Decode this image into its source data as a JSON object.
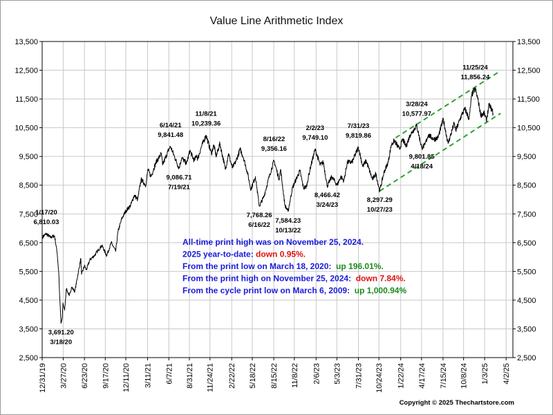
{
  "chart_data": {
    "type": "line",
    "title": "Value Line Arithmetic Index",
    "xlabel": "",
    "ylabel": "",
    "ylim": [
      2500,
      13500
    ],
    "xlim": [
      "2019-12-31",
      "2025-04-30"
    ],
    "grid": true,
    "y_ticks": [
      "13,500",
      "12,500",
      "11,500",
      "10,500",
      "9,500",
      "8,500",
      "7,500",
      "6,500",
      "5,500",
      "4,500",
      "3,500",
      "2,500"
    ],
    "y_tick_values": [
      13500,
      12500,
      11500,
      10500,
      9500,
      8500,
      7500,
      6500,
      5500,
      4500,
      3500,
      2500
    ],
    "x_ticks": [
      {
        "label": "12/31/19",
        "date": "2019-12-31"
      },
      {
        "label": "3/27/20",
        "date": "2020-03-27"
      },
      {
        "label": "6/23/20",
        "date": "2020-06-23"
      },
      {
        "label": "9/17/20",
        "date": "2020-09-17"
      },
      {
        "label": "12/11/20",
        "date": "2020-12-11"
      },
      {
        "label": "3/11/21",
        "date": "2021-03-11"
      },
      {
        "label": "6/7/21",
        "date": "2021-06-07"
      },
      {
        "label": "8/31/21",
        "date": "2021-08-31"
      },
      {
        "label": "11/24/21",
        "date": "2021-11-24"
      },
      {
        "label": "2/22/22",
        "date": "2022-02-22"
      },
      {
        "label": "5/18/22",
        "date": "2022-05-18"
      },
      {
        "label": "8/15/22",
        "date": "2022-08-15"
      },
      {
        "label": "11/8/22",
        "date": "2022-11-08"
      },
      {
        "label": "2/6/23",
        "date": "2023-02-06"
      },
      {
        "label": "5/3/23",
        "date": "2023-05-03"
      },
      {
        "label": "7/31/23",
        "date": "2023-07-31"
      },
      {
        "label": "10/24/23",
        "date": "2023-10-24"
      },
      {
        "label": "1/22/24",
        "date": "2024-01-22"
      },
      {
        "label": "4/17/24",
        "date": "2024-04-17"
      },
      {
        "label": "7/15/24",
        "date": "2024-07-15"
      },
      {
        "label": "10/8/24",
        "date": "2024-10-08"
      },
      {
        "label": "1/3/25",
        "date": "2025-01-03"
      },
      {
        "label": "4/2/25",
        "date": "2025-04-02"
      }
    ],
    "series": [
      {
        "color": "#000000",
        "points": [
          [
            "2020-01-02",
            6700
          ],
          [
            "2020-01-17",
            6810.03
          ],
          [
            "2020-02-03",
            6680
          ],
          [
            "2020-02-20",
            6740
          ],
          [
            "2020-03-02",
            6150
          ],
          [
            "2020-03-09",
            5400
          ],
          [
            "2020-03-12",
            4700
          ],
          [
            "2020-03-18",
            3691.2
          ],
          [
            "2020-03-23",
            3850
          ],
          [
            "2020-03-26",
            4400
          ],
          [
            "2020-04-02",
            4150
          ],
          [
            "2020-04-09",
            4900
          ],
          [
            "2020-04-21",
            4650
          ],
          [
            "2020-05-01",
            4950
          ],
          [
            "2020-05-14",
            4800
          ],
          [
            "2020-06-08",
            5950
          ],
          [
            "2020-06-11",
            5400
          ],
          [
            "2020-06-23",
            5700
          ],
          [
            "2020-07-01",
            5550
          ],
          [
            "2020-07-15",
            5900
          ],
          [
            "2020-08-03",
            6050
          ],
          [
            "2020-08-20",
            6250
          ],
          [
            "2020-09-03",
            6400
          ],
          [
            "2020-09-23",
            6050
          ],
          [
            "2020-10-12",
            6500
          ],
          [
            "2020-10-30",
            6200
          ],
          [
            "2020-11-09",
            6900
          ],
          [
            "2020-11-25",
            7350
          ],
          [
            "2020-12-11",
            7600
          ],
          [
            "2020-12-31",
            7800
          ],
          [
            "2021-01-15",
            8150
          ],
          [
            "2021-01-29",
            8000
          ],
          [
            "2021-02-12",
            8700
          ],
          [
            "2021-03-04",
            8500
          ],
          [
            "2021-03-12",
            9050
          ],
          [
            "2021-03-25",
            8800
          ],
          [
            "2021-04-15",
            9300
          ],
          [
            "2021-05-07",
            9600
          ],
          [
            "2021-05-12",
            9200
          ],
          [
            "2021-06-07",
            9750
          ],
          [
            "2021-06-14",
            9841.48
          ],
          [
            "2021-06-30",
            9500
          ],
          [
            "2021-07-19",
            9086.71
          ],
          [
            "2021-07-30",
            9450
          ],
          [
            "2021-08-19",
            9250
          ],
          [
            "2021-09-02",
            9700
          ],
          [
            "2021-09-20",
            9350
          ],
          [
            "2021-09-30",
            9550
          ],
          [
            "2021-10-04",
            9400
          ],
          [
            "2021-10-20",
            9850
          ],
          [
            "2021-11-08",
            10239.36
          ],
          [
            "2021-11-30",
            9600
          ],
          [
            "2021-12-10",
            9900
          ],
          [
            "2021-12-20",
            9500
          ],
          [
            "2022-01-04",
            9950
          ],
          [
            "2022-01-27",
            9050
          ],
          [
            "2022-02-09",
            9600
          ],
          [
            "2022-02-24",
            9100
          ],
          [
            "2022-03-10",
            9300
          ],
          [
            "2022-03-29",
            9750
          ],
          [
            "2022-04-12",
            9450
          ],
          [
            "2022-04-29",
            8900
          ],
          [
            "2022-05-12",
            8350
          ],
          [
            "2022-05-31",
            8800
          ],
          [
            "2022-06-16",
            7768.26
          ],
          [
            "2022-07-05",
            8100
          ],
          [
            "2022-07-29",
            8850
          ],
          [
            "2022-08-16",
            9356.16
          ],
          [
            "2022-09-06",
            8700
          ],
          [
            "2022-09-12",
            9050
          ],
          [
            "2022-09-30",
            7800
          ],
          [
            "2022-10-13",
            7584.23
          ],
          [
            "2022-10-31",
            8400
          ],
          [
            "2022-11-15",
            8700
          ],
          [
            "2022-12-01",
            9000
          ],
          [
            "2022-12-16",
            8400
          ],
          [
            "2022-12-28",
            8450
          ],
          [
            "2023-01-13",
            9100
          ],
          [
            "2023-02-02",
            9749.1
          ],
          [
            "2023-02-23",
            9200
          ],
          [
            "2023-03-08",
            9300
          ],
          [
            "2023-03-24",
            8466.42
          ],
          [
            "2023-04-12",
            8800
          ],
          [
            "2023-05-04",
            8500
          ],
          [
            "2023-05-19",
            8800
          ],
          [
            "2023-06-01",
            8650
          ],
          [
            "2023-06-15",
            9300
          ],
          [
            "2023-07-05",
            9300
          ],
          [
            "2023-07-31",
            9819.86
          ],
          [
            "2023-08-18",
            9150
          ],
          [
            "2023-09-01",
            9350
          ],
          [
            "2023-09-27",
            8700
          ],
          [
            "2023-10-11",
            8900
          ],
          [
            "2023-10-27",
            8297.29
          ],
          [
            "2023-11-14",
            8950
          ],
          [
            "2023-12-01",
            9300
          ],
          [
            "2023-12-14",
            9900
          ],
          [
            "2023-12-27",
            10050
          ],
          [
            "2024-01-17",
            9750
          ],
          [
            "2024-01-30",
            10100
          ],
          [
            "2024-02-13",
            9850
          ],
          [
            "2024-03-01",
            10250
          ],
          [
            "2024-03-28",
            10577.97
          ],
          [
            "2024-04-18",
            9801.85
          ],
          [
            "2024-05-01",
            9900
          ],
          [
            "2024-05-15",
            10250
          ],
          [
            "2024-06-07",
            10100
          ],
          [
            "2024-06-24",
            10150
          ],
          [
            "2024-07-16",
            10800
          ],
          [
            "2024-07-24",
            10450
          ],
          [
            "2024-08-05",
            9950
          ],
          [
            "2024-08-30",
            10650
          ],
          [
            "2024-09-06",
            10400
          ],
          [
            "2024-09-30",
            10950
          ],
          [
            "2024-10-14",
            11150
          ],
          [
            "2024-10-31",
            10800
          ],
          [
            "2024-11-11",
            11650
          ],
          [
            "2024-11-25",
            11856.24
          ],
          [
            "2024-12-06",
            11500
          ],
          [
            "2024-12-18",
            10950
          ],
          [
            "2025-01-02",
            11000
          ],
          [
            "2025-01-10",
            10750
          ],
          [
            "2025-01-22",
            11300
          ],
          [
            "2025-01-31",
            11150
          ],
          [
            "2025-02-07",
            11000
          ]
        ]
      }
    ],
    "trend_lines": [
      {
        "color": "#2ea02e",
        "from": [
          "2023-10-27",
          8297.29
        ],
        "to": [
          "2025-03-10",
          11000
        ]
      },
      {
        "color": "#2ea02e",
        "from": [
          "2024-01-01",
          10150
        ],
        "to": [
          "2025-03-10",
          12480
        ]
      }
    ],
    "annotations": [
      {
        "date": "1/17/20",
        "value": "6,810.03",
        "at": [
          "2020-01-17",
          6810.03
        ],
        "side": "above"
      },
      {
        "date": "3/18/20",
        "value": "3,691.20",
        "at": [
          "2020-03-18",
          3691.2
        ],
        "side": "below"
      },
      {
        "date": "6/14/21",
        "value": "9,841.48",
        "at": [
          "2021-06-14",
          9841.48
        ],
        "side": "above"
      },
      {
        "date": "7/19/21",
        "value": "9,086.71",
        "at": [
          "2021-07-19",
          9086.71
        ],
        "side": "below"
      },
      {
        "date": "11/8/21",
        "value": "10,239.36",
        "at": [
          "2021-11-08",
          10239.36
        ],
        "side": "above"
      },
      {
        "date": "6/16/22",
        "value": "7,768.26",
        "at": [
          "2022-06-16",
          7768.26
        ],
        "side": "below"
      },
      {
        "date": "8/16/22",
        "value": "9,356.16",
        "at": [
          "2022-08-16",
          9356.16
        ],
        "side": "above"
      },
      {
        "date": "10/13/22",
        "value": "7,584.23",
        "at": [
          "2022-10-13",
          7584.23
        ],
        "side": "below"
      },
      {
        "date": "2/2/23",
        "value": "9,749.10",
        "at": [
          "2023-02-02",
          9749.1
        ],
        "side": "above"
      },
      {
        "date": "3/24/23",
        "value": "8,466.42",
        "at": [
          "2023-03-24",
          8466.42
        ],
        "side": "below"
      },
      {
        "date": "7/31/23",
        "value": "9,819.86",
        "at": [
          "2023-07-31",
          9819.86
        ],
        "side": "above"
      },
      {
        "date": "10/27/23",
        "value": "8,297.29",
        "at": [
          "2023-10-27",
          8297.29
        ],
        "side": "below"
      },
      {
        "date": "3/28/24",
        "value": "10,577.97",
        "at": [
          "2024-03-28",
          10577.97
        ],
        "side": "above"
      },
      {
        "date": "4/18/24",
        "value": "9,801.85",
        "at": [
          "2024-04-18",
          9801.85
        ],
        "side": "below"
      },
      {
        "date": "11/25/24",
        "value": "11,856.24",
        "at": [
          "2024-11-25",
          11856.24
        ],
        "side": "above"
      }
    ],
    "text_box": [
      {
        "parts": [
          {
            "text": "All-time print high was on November 25, 2024.",
            "color": "#1a1adc"
          }
        ]
      },
      {
        "parts": [
          {
            "text": "2025 year-to-date: ",
            "color": "#1a1adc"
          },
          {
            "text": "down 0.95%.",
            "color": "#e01010"
          }
        ]
      },
      {
        "parts": [
          {
            "text": "From the print low on March 18, 2020:  ",
            "color": "#1a1adc"
          },
          {
            "text": "up 196.01%.",
            "color": "#1a8a1a"
          }
        ]
      },
      {
        "parts": [
          {
            "text": "From the print high on November 25, 2024:  ",
            "color": "#1a1adc"
          },
          {
            "text": "down 7.84%.",
            "color": "#e01010"
          }
        ]
      },
      {
        "parts": [
          {
            "text": "From the cycle print low on March 6, 2009:  ",
            "color": "#1a1adc"
          },
          {
            "text": "up 1,000.94%",
            "color": "#1a8a1a"
          }
        ]
      }
    ],
    "copyright": "Copyright © 2025 Thechartstore.com"
  }
}
